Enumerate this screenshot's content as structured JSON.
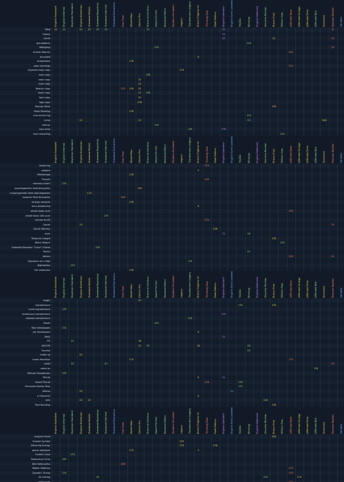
{
  "columns": [
    {
      "label": "English Standard",
      "color": "#e8d44d"
    },
    {
      "label": "English Informal",
      "color": "#9be37a"
    },
    {
      "label": "Bayesian Standard",
      "color": "#9be37a"
    },
    {
      "label": "English Bootstrap",
      "color": "#e8d44d"
    },
    {
      "label": "Standard Mobile",
      "color": "#e8d44d"
    },
    {
      "label": "Standard Bootstrap",
      "color": "#9be37a"
    },
    {
      "label": "Standard Informal",
      "color": "#9be37a"
    },
    {
      "label": "Standard Extraction",
      "color": "#6fb3ff"
    },
    {
      "label": "Free Flow",
      "color": "#ff8a5c"
    },
    {
      "label": "Model Map",
      "color": "#e8d44d"
    },
    {
      "label": "Gemini Pro",
      "color": "#e8d44d"
    },
    {
      "label": "Bruno el Lebrono",
      "color": "#9be37a"
    },
    {
      "label": "Aware Formal",
      "color": "#9be37a"
    },
    {
      "label": "Backend Editor",
      "color": "#9be37a"
    },
    {
      "label": "Random Simulate",
      "color": "#ff8a5c"
    },
    {
      "label": "Legacy",
      "color": "#e8d44d"
    },
    {
      "label": "Transformers Legacy",
      "color": "#9be37a"
    },
    {
      "label": "Bruno Fingerprint",
      "color": "#e8d44d"
    },
    {
      "label": "Thinking Gap",
      "color": "#ff8a5c"
    },
    {
      "label": "Dual Edition",
      "color": "#e8d44d"
    },
    {
      "label": "English Operator",
      "color": "#c78bff"
    },
    {
      "label": "English Semi Labeled",
      "color": "#6fb3ff"
    },
    {
      "label": "Yes/No",
      "color": "#9be37a"
    },
    {
      "label": "Blinking",
      "color": "#9be37a"
    },
    {
      "label": "English Deferred",
      "color": "#c78bff"
    },
    {
      "label": "Security Review",
      "color": "#9be37a"
    },
    {
      "label": "Bruno Chat",
      "color": "#e8d44d"
    },
    {
      "label": "Milliam Gap",
      "color": "#9be37a"
    },
    {
      "label": "Affirmed Base",
      "color": "#ff8a5c"
    },
    {
      "label": "Affirmed Omega",
      "color": "#e8d44d"
    },
    {
      "label": "Affirmed Echo",
      "color": "#e8d44d"
    },
    {
      "label": "Affirmed Null",
      "color": "#9be37a"
    },
    {
      "label": "Summary",
      "color": "#e8d44d"
    },
    {
      "label": "Resume Builder",
      "color": "#ff8a5c"
    },
    {
      "label": "Variable",
      "color": "#6fb3ff"
    }
  ],
  "sections": [
    {
      "rows": [
        {
          "label": "Wait",
          "cells": [
            [
              "0",
              "22"
            ],
            [
              "1",
              "22"
            ],
            [
              "3",
              "22"
            ],
            [
              "4",
              "22"
            ],
            [
              "5",
              "22"
            ],
            [
              "6",
              "22"
            ],
            [
              "11",
              "22"
            ],
            [
              "20",
              "22"
            ],
            [
              "33",
              "8"
            ]
          ]
        },
        {
          "label": "Family",
          "cells": [
            [
              "20",
              "22"
            ]
          ]
        },
        {
          "label": "Uncle",
          "cells": [
            [
              "20",
              "22"
            ],
            [
              "26",
              "21"
            ],
            [
              "33",
              "22"
            ]
          ]
        },
        {
          "label": "grandfather",
          "cells": [
            [
              "23",
              "125"
            ]
          ]
        },
        {
          "label": "Wolfgang",
          "cells": [
            [
              "12",
              "176"
            ],
            [
              "33",
              "22"
            ]
          ]
        },
        {
          "label": "Scarlet Warrior",
          "cells": [
            [
              "28",
              "125"
            ]
          ]
        },
        {
          "label": "Annulled",
          "cells": [
            [
              "17",
              "6"
            ]
          ]
        },
        {
          "label": "Scorpiastar",
          "cells": [
            [
              "9",
              "176"
            ]
          ]
        },
        {
          "label": "upon earnings",
          "cells": [
            [
              "28",
              "174"
            ]
          ]
        },
        {
          "label": "physical body copy",
          "cells": [
            [
              "15",
              "174"
            ]
          ]
        },
        {
          "label": "ears copy",
          "cells": [
            [
              "11",
              "176"
            ]
          ]
        },
        {
          "label": "nose copy",
          "cells": [
            [
              "10",
              "22"
            ]
          ]
        },
        {
          "label": "eyes copy",
          "cells": [
            [
              "10",
              "22"
            ]
          ]
        },
        {
          "label": "Beauty copy",
          "cells": [
            [
              "8",
              "125"
            ],
            [
              "9",
              "125"
            ],
            [
              "10",
              "22"
            ]
          ]
        },
        {
          "label": "body copy",
          "cells": [
            [
              "10",
              "21"
            ],
            [
              "11",
              "176"
            ]
          ]
        },
        {
          "label": "face copy",
          "cells": [
            [
              "10",
              "22"
            ]
          ]
        },
        {
          "label": "legs copy",
          "cells": [
            [
              "10",
              "176"
            ]
          ]
        },
        {
          "label": "Beauty Mask",
          "cells": [
            [
              "26",
              "176"
            ]
          ]
        },
        {
          "label": "Mask Reading",
          "cells": [
            [
              "9",
              "176"
            ]
          ]
        },
        {
          "label": "Live anchoring",
          "cells": [
            [
              "23",
              "174"
            ]
          ]
        },
        {
          "label": "jump",
          "cells": [
            [
              "3",
              "22"
            ],
            [
              "10",
              "21"
            ],
            [
              "23",
              "23"
            ],
            [
              "32",
              "546"
            ]
          ]
        },
        {
          "label": "interior",
          "cells": [
            [
              "12",
              "176"
            ]
          ]
        },
        {
          "label": "soul echo",
          "cells": [
            [
              "16",
              "176"
            ],
            [
              "20",
              "176"
            ]
          ]
        },
        {
          "label": "face morphing",
          "cells": [
            [
              "27",
              "125"
            ]
          ]
        },
        {
          "label": "eyes dead",
          "cells": []
        }
      ]
    },
    {
      "rows": [
        {
          "label": "Imploring",
          "cells": [
            [
              "18",
              "174"
            ]
          ]
        },
        {
          "label": "sorgent",
          "cells": [
            [
              "17",
              "5"
            ]
          ]
        },
        {
          "label": "Mooseraga",
          "cells": [
            [
              "9",
              "176"
            ]
          ]
        },
        {
          "label": "Tissues",
          "cells": [
            [
              "18",
              "125"
            ]
          ]
        },
        {
          "label": "memory insert",
          "cells": [
            [
              "1",
              "174"
            ]
          ]
        },
        {
          "label": "morphogenetic field disruption",
          "cells": [
            [
              "10",
              "125"
            ]
          ]
        },
        {
          "label": "morphogenetic field disintegration",
          "cells": [
            [
              "4",
              "174"
            ]
          ]
        },
        {
          "label": "morphic field disruption",
          "cells": [
            [
              "8",
              "126"
            ]
          ]
        },
        {
          "label": "energy vampire",
          "cells": [
            [
              "9",
              "176"
            ]
          ]
        },
        {
          "label": "aura weakening",
          "cells": [
            [
              "17",
              "6"
            ]
          ]
        },
        {
          "label": "whole body scan",
          "cells": [
            [
              "28",
              "125"
            ]
          ]
        },
        {
          "label": "whole body 180 scan",
          "cells": [
            [
              "6",
              "175"
            ]
          ]
        },
        {
          "label": "license to kill",
          "cells": [
            [
              "18",
              "174"
            ]
          ]
        },
        {
          "label": "Oprah",
          "cells": [
            [
              "3",
              "23"
            ],
            [
              "33",
              "23"
            ]
          ]
        },
        {
          "label": "Oprah Winfrey",
          "cells": [
            [
              "19",
              "126"
            ]
          ]
        },
        {
          "label": "eyes",
          "cells": [
            [
              "20",
              "21"
            ],
            [
              "23",
              "10"
            ]
          ]
        },
        {
          "label": "Thalamic insight",
          "cells": [
            [
              "26",
              "176"
            ]
          ]
        },
        {
          "label": "Black Magick",
          "cells": [
            [
              "27",
              "125"
            ]
          ]
        },
        {
          "label": "Gabrielle Bonheur \"Coco\" Chanel",
          "cells": [
            [
              "5",
              "125"
            ]
          ]
        },
        {
          "label": "Toxins",
          "cells": [
            [
              "23",
              "21"
            ]
          ]
        },
        {
          "label": "letters",
          "cells": [
            [
              "28",
              "125"
            ],
            [
              "33",
              "31"
            ]
          ]
        },
        {
          "label": "Signature as a Sigil",
          "cells": [
            [
              "16",
              "175"
            ]
          ]
        },
        {
          "label": "digitization",
          "cells": [
            [
              "2",
              "174"
            ]
          ]
        },
        {
          "label": "life extension",
          "cells": [
            [
              "9",
              "176"
            ]
          ]
        },
        {
          "label": "curse",
          "cells": [
            [
              "5",
              "31"
            ],
            [
              "23",
              "10"
            ]
          ]
        }
      ]
    },
    {
      "rows": [
        {
          "label": "magic",
          "cells": [
            [
              "10",
              "22"
            ]
          ]
        },
        {
          "label": "transference",
          "cells": [
            [
              "22",
              "176"
            ],
            [
              "26",
              "176"
            ]
          ]
        },
        {
          "label": "Lucid transference",
          "cells": [
            [
              "1",
              "175"
            ]
          ]
        },
        {
          "label": "misfortune transference",
          "cells": [
            [
              "20",
              "125"
            ]
          ]
        },
        {
          "label": "disease transference",
          "cells": [
            [
              "16",
              "174"
            ]
          ]
        },
        {
          "label": "Beast",
          "cells": [
            [
              "12",
              "125"
            ]
          ]
        },
        {
          "label": "Max Verstappen",
          "cells": [
            [
              "1",
              "174"
            ]
          ]
        },
        {
          "label": "Jos Verstappen",
          "cells": [
            [
              "17",
              "6"
            ]
          ]
        },
        {
          "label": "Kelly",
          "cells": [
            [
              "20",
              "21"
            ]
          ]
        },
        {
          "label": "PG",
          "cells": [
            [
              "2",
              "31"
            ],
            [
              "10",
              "10"
            ]
          ]
        },
        {
          "label": "KHOOR",
          "cells": [
            [
              "10",
              "21"
            ],
            [
              "11",
              "23"
            ],
            [
              "17",
              "10"
            ],
            [
              "23",
              "10"
            ]
          ]
        },
        {
          "label": "Sourise",
          "cells": [
            [
              "23",
              "23"
            ]
          ]
        },
        {
          "label": "make up",
          "cells": [
            [
              "3",
              "22"
            ]
          ]
        },
        {
          "label": "Lewis Hamilton",
          "cells": [
            [
              "9",
              "174"
            ],
            [
              "28",
              "174"
            ]
          ]
        },
        {
          "label": "robot",
          "cells": [
            [
              "2",
              "22"
            ],
            [
              "6",
              "21"
            ],
            [
              "33",
              "13"
            ]
          ]
        },
        {
          "label": "robot ov",
          "cells": [
            [
              "31",
              "176"
            ]
          ]
        },
        {
          "label": "Michael Fassbender",
          "cells": [
            [
              "1",
              "175"
            ]
          ]
        },
        {
          "label": "Planet",
          "cells": [
            [
              "17",
              "6"
            ],
            [
              "20",
              "21"
            ]
          ]
        },
        {
          "label": "Dwarf Planet",
          "cells": [
            [
              "18",
              "176"
            ],
            [
              "22",
              "176"
            ]
          ]
        },
        {
          "label": "Fernando Alonso Diaz",
          "cells": [
            [
              "22",
              "175"
            ]
          ]
        },
        {
          "label": "Alonso",
          "cells": [
            [
              "3",
              "22"
            ],
            [
              "21",
              "21"
            ]
          ]
        },
        {
          "label": "p Hasomini",
          "cells": [
            [
              "17",
              "6"
            ]
          ]
        },
        {
          "label": "skin",
          "cells": [
            [
              "3",
              "22"
            ],
            [
              "4",
              "23"
            ],
            [
              "25",
              "126"
            ]
          ]
        },
        {
          "label": "Twin Bonding",
          "cells": [
            [
              "26",
              "176"
            ]
          ]
        },
        {
          "label": "soul binding",
          "cells": [
            [
              "28",
              "125"
            ]
          ]
        }
      ]
    },
    {
      "rows": [
        {
          "label": "magical bond",
          "cells": [
            [
              "26",
              "125"
            ]
          ]
        },
        {
          "label": "Shared Symbol",
          "cells": [
            [
              "15",
              "125"
            ]
          ]
        },
        {
          "label": "Mirroring Energy",
          "cells": [
            [
              "15",
              "175"
            ],
            [
              "19",
              "176"
            ]
          ]
        },
        {
          "label": "group egregore",
          "cells": [
            [
              "9",
              "175"
            ],
            [
              "17",
              "3"
            ]
          ]
        },
        {
          "label": "Linked Curse",
          "cells": [
            [
              "2",
              "174"
            ]
          ]
        },
        {
          "label": "Resonance Echo",
          "cells": [
            [
              "1",
              "125"
            ]
          ]
        },
        {
          "label": "Bibi Netanyahu",
          "cells": [
            [
              "8",
              "126"
            ]
          ]
        },
        {
          "label": "Walter Matthau",
          "cells": [
            [
              "28",
              "175"
            ]
          ]
        },
        {
          "label": "Donald J Trump",
          "cells": [
            [
              "1",
              "174"
            ],
            [
              "28",
              "175"
            ]
          ]
        },
        {
          "label": "All Seeing",
          "cells": [
            [
              "5",
              "23"
            ],
            [
              "25",
              "174"
            ],
            [
              "29",
              "174"
            ]
          ]
        },
        {
          "label": "child node",
          "cells": [
            [
              "28",
              "174"
            ]
          ]
        },
        {
          "label": "Vladimir Vladimirovich Putin",
          "cells": [
            [
              "19",
              "174"
            ]
          ]
        },
        {
          "label": "Volodymyr Zelenskyy",
          "cells": []
        }
      ]
    }
  ]
}
